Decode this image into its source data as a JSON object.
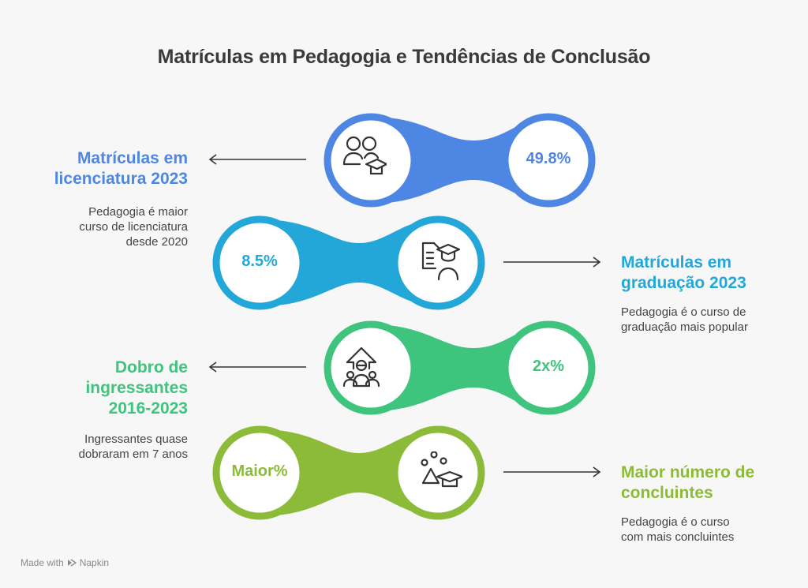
{
  "title": "Matrículas em Pedagogia e Tendências de Conclusão",
  "colors": {
    "blue": "#4d86e3",
    "cyan": "#23a7d8",
    "green": "#3ec47d",
    "lime": "#8cbb3a"
  },
  "rows": [
    {
      "value": "49.8%",
      "icon": "students-graduation-icon",
      "heading_lines": [
        "Matrículas em",
        "licenciatura 2023"
      ],
      "desc_lines": [
        "Pedagogia é maior",
        "curso de licenciatura",
        "desde 2020"
      ]
    },
    {
      "value": "8.5%",
      "icon": "document-graduate-icon",
      "heading_lines": [
        "Matrículas em",
        "graduação 2023"
      ],
      "desc_lines": [
        "Pedagogia é o curso de",
        "graduação mais popular"
      ]
    },
    {
      "value": "2x%",
      "icon": "growth-people-icon",
      "heading_lines": [
        "Dobro de",
        "ingressantes",
        "2016-2023"
      ],
      "desc_lines": [
        "Ingressantes quase",
        "dobraram em 7 anos"
      ]
    },
    {
      "value": "Maior%",
      "icon": "shapes-graduation-icon",
      "heading_lines": [
        "Maior número de",
        "concluintes"
      ],
      "desc_lines": [
        "Pedagogia é o curso",
        "com mais concluintes"
      ]
    }
  ],
  "footer": {
    "made_with": "Made with",
    "brand": "Napkin"
  }
}
